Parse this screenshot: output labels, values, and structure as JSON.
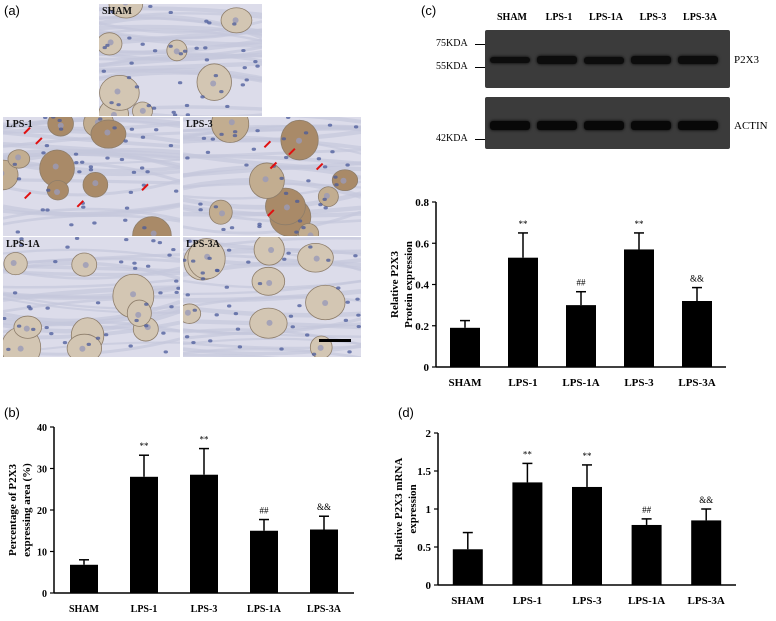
{
  "panels": {
    "a": {
      "label": "(a)",
      "tiles": [
        {
          "key": "sham",
          "label": "SHAM"
        },
        {
          "key": "lps1",
          "label": "LPS-1"
        },
        {
          "key": "lps3",
          "label": "LPS-3"
        },
        {
          "key": "lps1a",
          "label": "LPS-1A"
        },
        {
          "key": "lps3a",
          "label": "LPS-3A"
        }
      ]
    },
    "c": {
      "label": "(c)",
      "blot_lanes": [
        "SHAM",
        "LPS-1",
        "LPS-1A",
        "LPS-3",
        "LPS-3A"
      ],
      "markers": [
        "75KDA",
        "55KDA",
        "42KDA"
      ],
      "bands": [
        "P2X3",
        "ACTIN"
      ]
    },
    "b": {
      "label": "(b)"
    },
    "d": {
      "label": "(d)"
    }
  },
  "chart_data": [
    {
      "id": "c",
      "type": "bar",
      "categories": [
        "SHAM",
        "LPS-1",
        "LPS-1A",
        "LPS-3",
        "LPS-3A"
      ],
      "values": [
        0.19,
        0.53,
        0.3,
        0.57,
        0.32
      ],
      "errors": [
        0.035,
        0.12,
        0.065,
        0.08,
        0.065
      ],
      "annotations": [
        "",
        "**",
        "##",
        "**",
        "&&"
      ],
      "ylabel": [
        "Relative P2X3",
        "Protein expression"
      ],
      "ylim": [
        0,
        0.8
      ],
      "yticks": [
        "0",
        "0.2",
        "0.4",
        "0.6",
        "0.8"
      ],
      "ytick_values": [
        0,
        0.2,
        0.4,
        0.6,
        0.8
      ]
    },
    {
      "id": "b",
      "type": "bar",
      "categories": [
        "SHAM",
        "LPS-1",
        "LPS-3",
        "LPS-1A",
        "LPS-3A"
      ],
      "values": [
        6.8,
        28.0,
        28.5,
        15.0,
        15.3
      ],
      "errors": [
        1.2,
        5.2,
        6.3,
        2.7,
        3.2
      ],
      "annotations": [
        "",
        "**",
        "**",
        "##",
        "&&"
      ],
      "ylabel": [
        "Percentage of P2X3",
        "expressing area (%)"
      ],
      "ylim": [
        0,
        40
      ],
      "yticks": [
        "0",
        "10",
        "20",
        "30",
        "40"
      ],
      "ytick_values": [
        0,
        10,
        20,
        30,
        40
      ]
    },
    {
      "id": "d",
      "type": "bar",
      "categories": [
        "SHAM",
        "LPS-1",
        "LPS-3",
        "LPS-1A",
        "LPS-3A"
      ],
      "values": [
        0.47,
        1.35,
        1.29,
        0.79,
        0.85
      ],
      "errors": [
        0.22,
        0.25,
        0.29,
        0.08,
        0.15
      ],
      "annotations": [
        "",
        "**",
        "**",
        "##",
        "&&"
      ],
      "ylabel": [
        "Relative P2X3 mRNA",
        "expression"
      ],
      "ylim": [
        0,
        2
      ],
      "yticks": [
        "0",
        "0.5",
        "1",
        "1.5",
        "2"
      ],
      "ytick_values": [
        0,
        0.5,
        1,
        1.5,
        2
      ]
    }
  ]
}
